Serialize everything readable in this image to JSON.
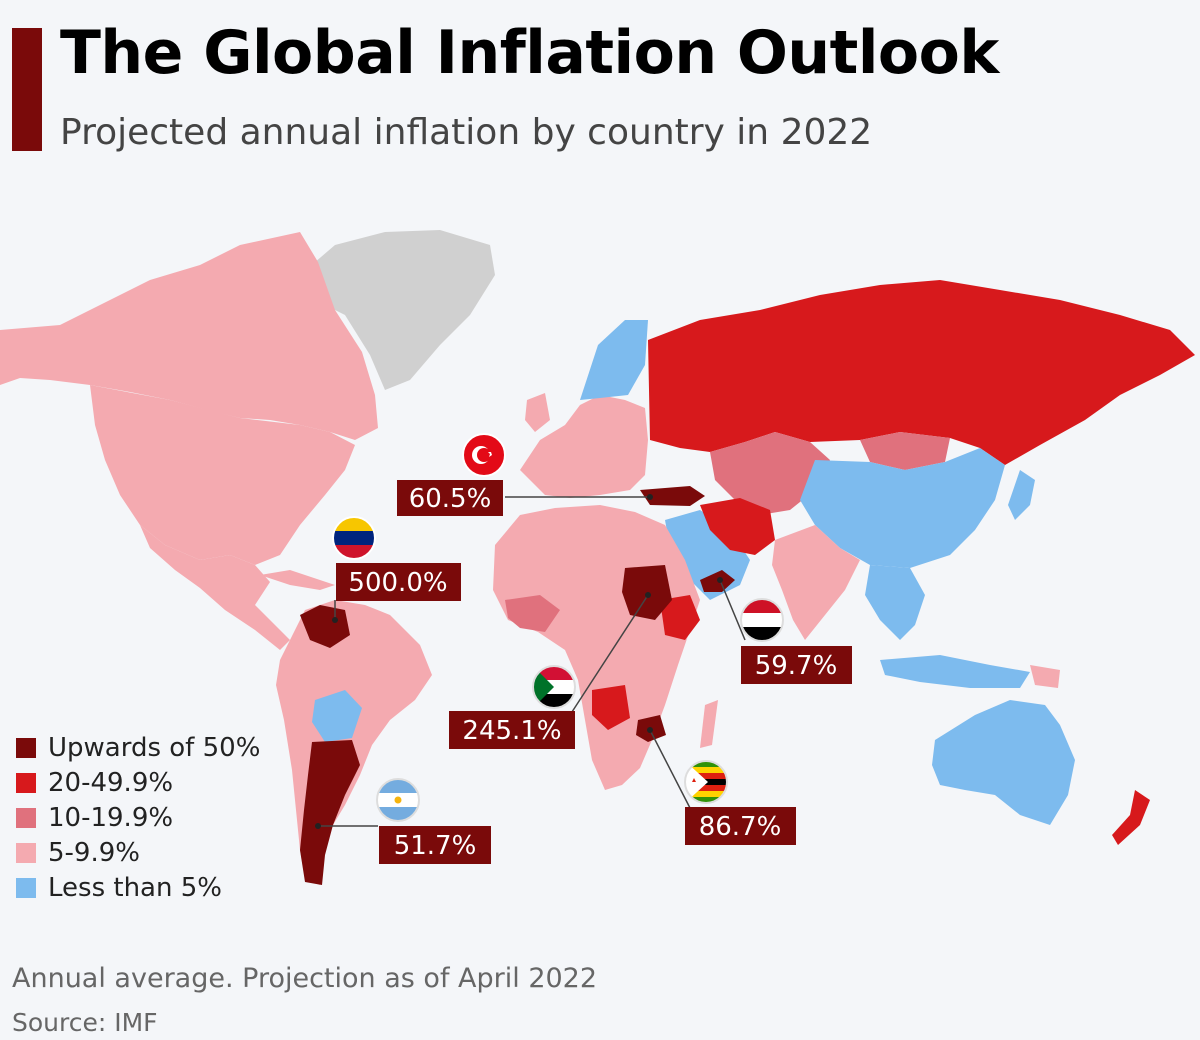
{
  "title": "The Global Inflation Outlook",
  "subtitle": "Projected annual inflation by country in 2022",
  "footnote": "Annual average. Projection as of April 2022",
  "source": "Source: IMF",
  "colors": {
    "upwards_50": "#7a0a0a",
    "range_20_49": "#d7191c",
    "range_10_19": "#e0717d",
    "range_5_9": "#f4aab0",
    "less_5": "#7dbbee",
    "no_data": "#d0d0d0",
    "callout_bg": "#7a0a0a",
    "background": "#f4f6f9"
  },
  "legend": [
    {
      "label": "Upwards of 50%",
      "color": "#7a0a0a"
    },
    {
      "label": "20-49.9%",
      "color": "#d7191c"
    },
    {
      "label": "10-19.9%",
      "color": "#e0717d"
    },
    {
      "label": "5-9.9%",
      "color": "#f4aab0"
    },
    {
      "label": "Less than 5%",
      "color": "#7dbbee"
    }
  ],
  "callouts": [
    {
      "country": "Turkey",
      "value": "60.5%",
      "flag": "turkey-flag-icon"
    },
    {
      "country": "Venezuela",
      "value": "500.0%",
      "flag": "venezuela-flag-icon"
    },
    {
      "country": "Yemen",
      "value": "59.7%",
      "flag": "yemen-flag-icon"
    },
    {
      "country": "Sudan",
      "value": "245.1%",
      "flag": "sudan-flag-icon"
    },
    {
      "country": "Zimbabwe",
      "value": "86.7%",
      "flag": "zimbabwe-flag-icon"
    },
    {
      "country": "Argentina",
      "value": "51.7%",
      "flag": "argentina-flag-icon"
    }
  ]
}
